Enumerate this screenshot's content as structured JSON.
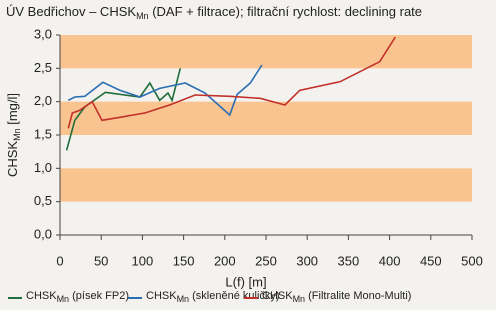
{
  "chart_data": {
    "type": "line",
    "title": [
      "ÚV Bedřichov – CHSK",
      "Mn",
      " (DAF + filtrace); filtrační rychlost: declining rate"
    ],
    "ylabel": [
      "CHSK",
      "Mn",
      " [mg/l]"
    ],
    "xlabel": "L(f) [m]",
    "xlim": [
      0,
      500
    ],
    "xticks": [
      0,
      50,
      100,
      150,
      200,
      250,
      300,
      350,
      400,
      450,
      500
    ],
    "ylim": [
      0,
      3
    ],
    "yticks": [
      {
        "value": 0,
        "label": "0,0"
      },
      {
        "value": 0.5,
        "label": "0,5"
      },
      {
        "value": 1,
        "label": "1,0"
      },
      {
        "value": 1.5,
        "label": "1,5"
      },
      {
        "value": 2,
        "label": "2,0"
      },
      {
        "value": 2.5,
        "label": "2,5"
      },
      {
        "value": 3,
        "label": "3,0"
      }
    ],
    "band_color": "#f9c490",
    "series": [
      {
        "name": [
          "CHSK",
          "Mn",
          " (písek FP2)"
        ],
        "color": "#1f6e3c",
        "x": [
          8,
          18,
          30,
          55,
          97,
          109,
          121,
          131,
          136,
          146
        ],
        "values": [
          1.27,
          1.72,
          1.92,
          2.14,
          2.07,
          2.28,
          2.02,
          2.13,
          2.02,
          2.5
        ]
      },
      {
        "name": [
          "CHSK",
          "Mn",
          " (skleněné kuličky)"
        ],
        "color": "#2a6db3",
        "x": [
          10,
          18,
          30,
          52,
          73,
          97,
          121,
          152,
          176,
          206,
          215,
          231,
          245
        ],
        "values": [
          2.02,
          2.07,
          2.08,
          2.29,
          2.17,
          2.07,
          2.2,
          2.28,
          2.13,
          1.8,
          2.11,
          2.28,
          2.55
        ]
      },
      {
        "name": [
          "CHSK",
          "Mn",
          " (Filtralite Mono-Multi)"
        ],
        "color": "#c2302a",
        "x": [
          10,
          15,
          24,
          39,
          51,
          103,
          133,
          164,
          206,
          243,
          273,
          291,
          340,
          388,
          407
        ],
        "values": [
          1.6,
          1.83,
          1.87,
          2.0,
          1.72,
          1.83,
          1.95,
          2.1,
          2.08,
          2.05,
          1.95,
          2.17,
          2.3,
          2.6,
          2.97
        ]
      }
    ]
  }
}
